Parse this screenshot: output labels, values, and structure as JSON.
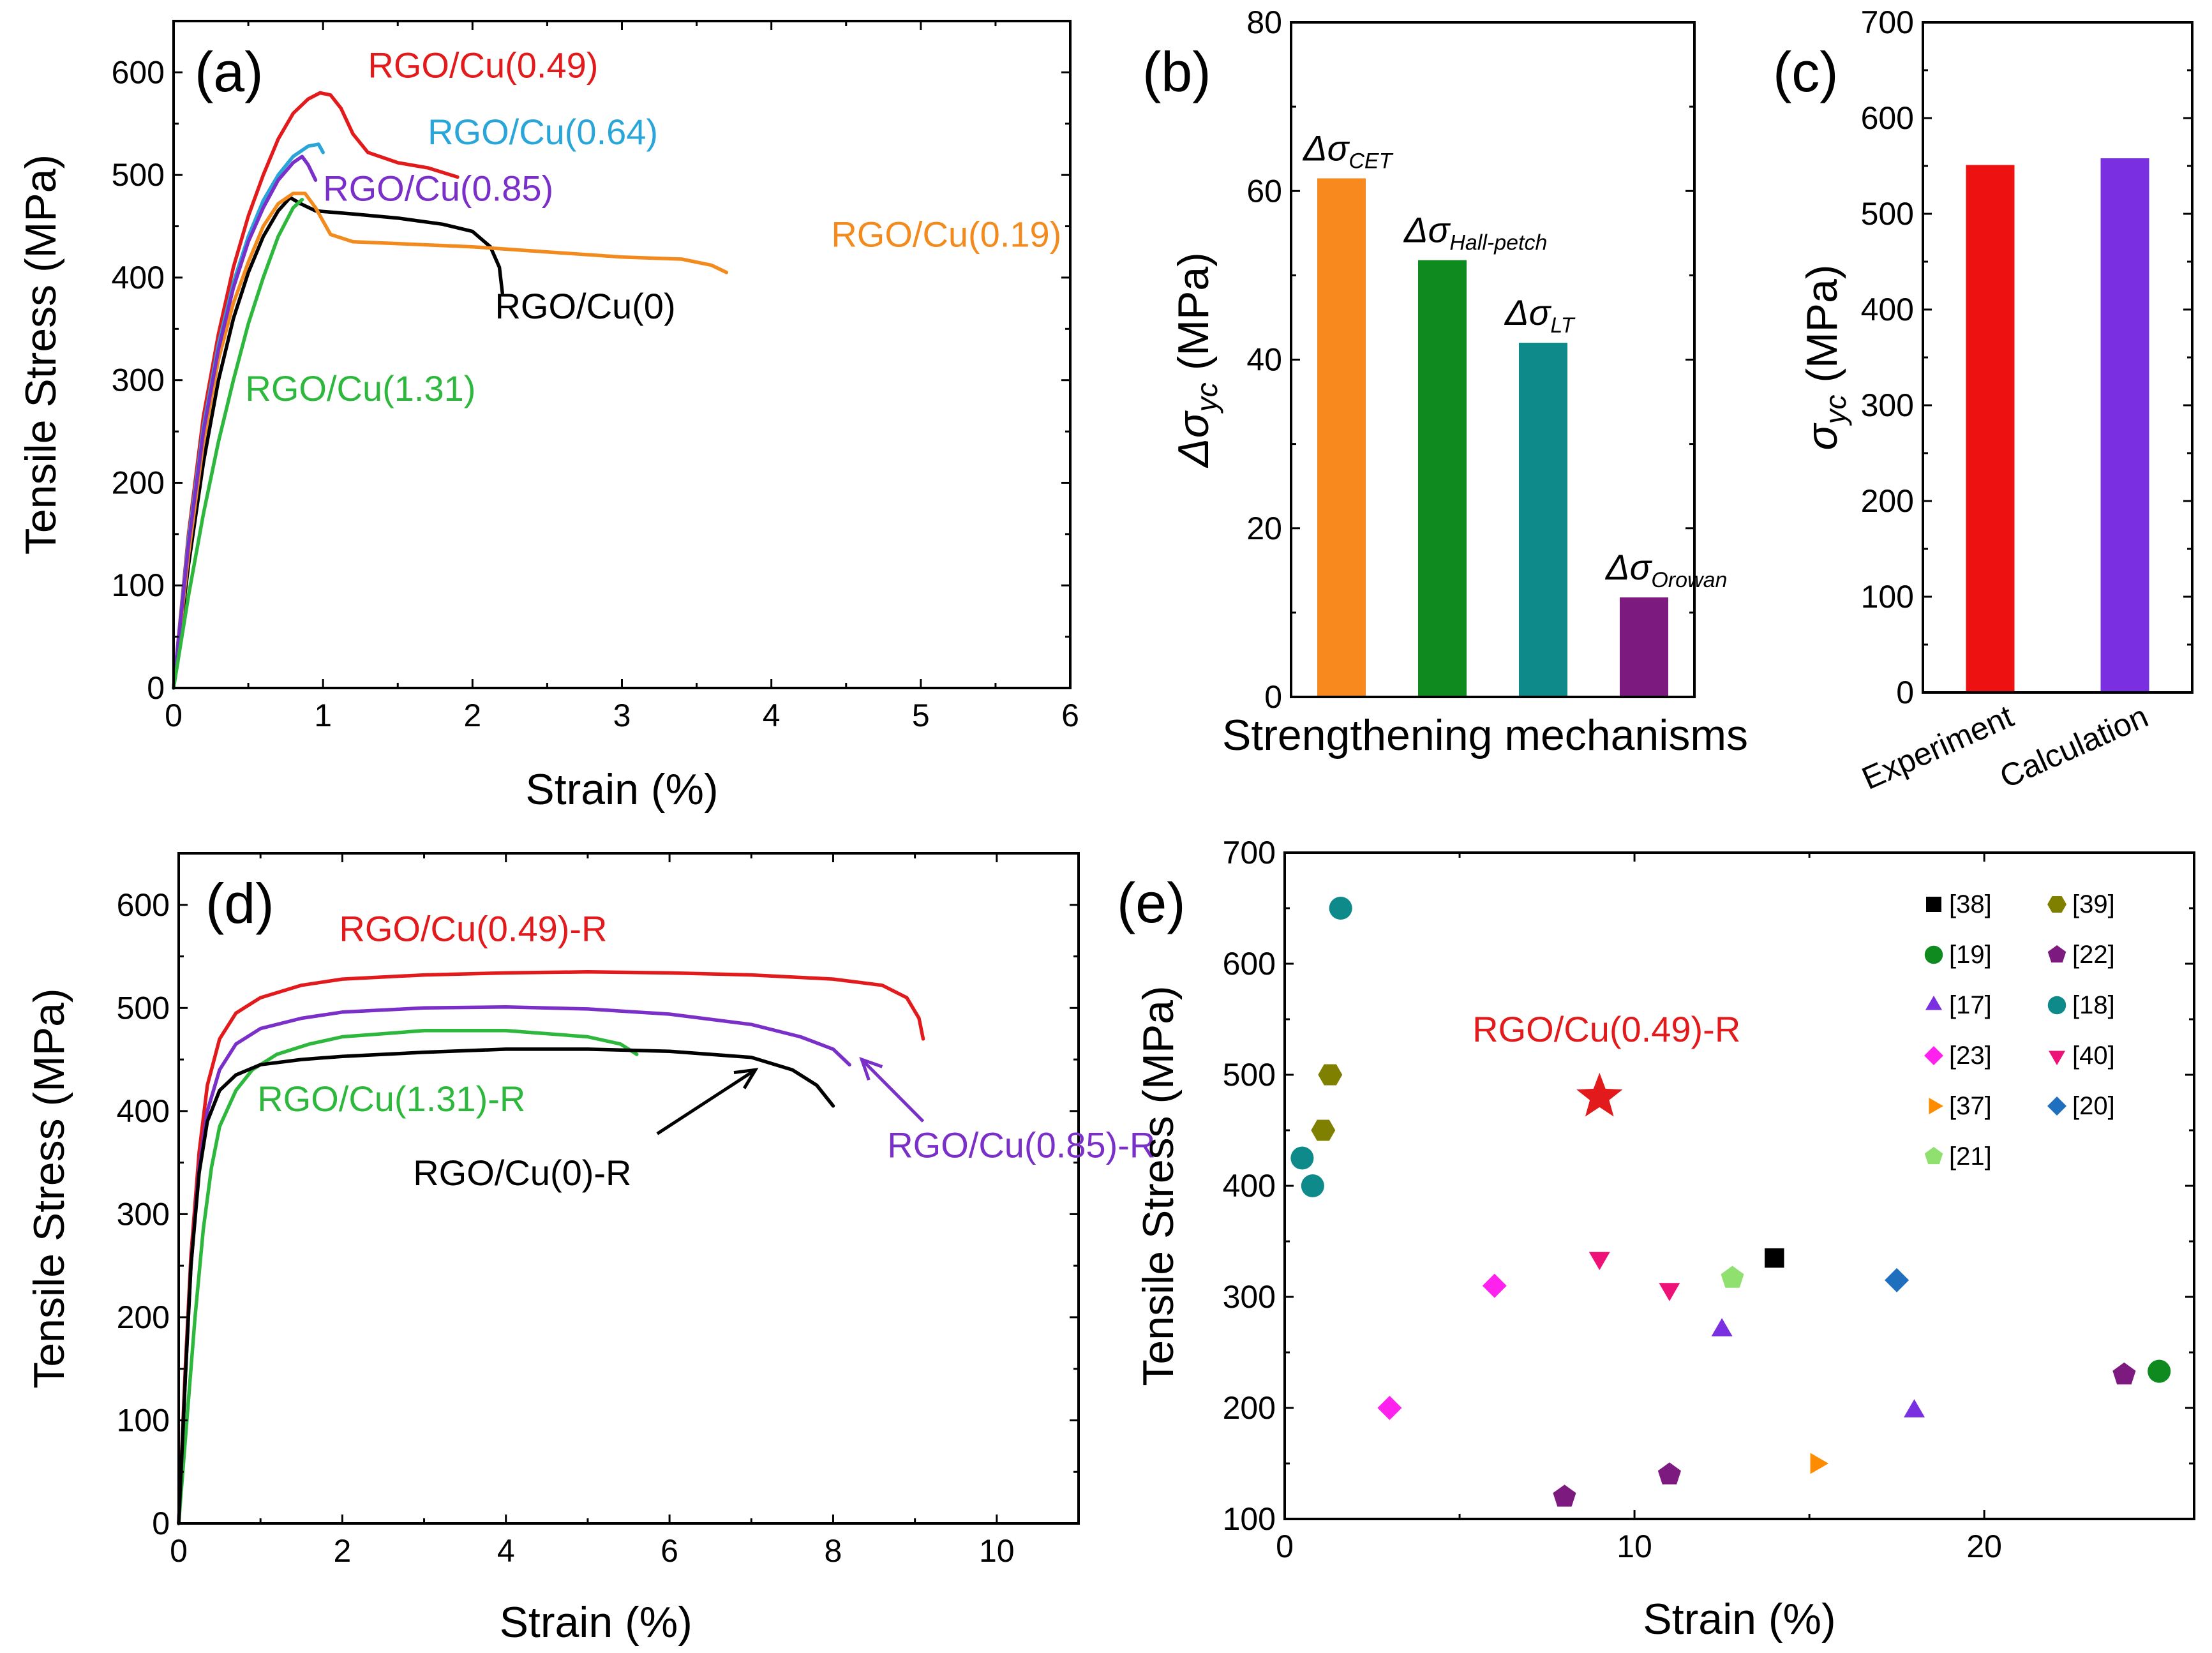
{
  "chart_data": [
    {
      "id": "a",
      "panel_label": "(a)",
      "type": "line",
      "xlabel": "Strain (%)",
      "ylabel": "Tensile Stress (MPa)",
      "xlim": [
        0,
        6
      ],
      "ylim": [
        0,
        650
      ],
      "xticks": [
        0,
        1,
        2,
        3,
        4,
        5,
        6
      ],
      "yticks": [
        0,
        100,
        200,
        300,
        400,
        500,
        600
      ],
      "series": [
        {
          "name": "RGO/Cu(0)",
          "color": "#000000",
          "label": "RGO/Cu(0)",
          "label_x": 2.15,
          "label_y": 360,
          "points": [
            [
              0,
              0
            ],
            [
              0.1,
              120
            ],
            [
              0.2,
              220
            ],
            [
              0.3,
              300
            ],
            [
              0.4,
              360
            ],
            [
              0.5,
              405
            ],
            [
              0.6,
              440
            ],
            [
              0.7,
              465
            ],
            [
              0.78,
              478
            ],
            [
              0.85,
              472
            ],
            [
              0.95,
              465
            ],
            [
              1.2,
              462
            ],
            [
              1.5,
              458
            ],
            [
              1.8,
              452
            ],
            [
              2.0,
              445
            ],
            [
              2.12,
              430
            ],
            [
              2.18,
              410
            ],
            [
              2.2,
              385
            ]
          ]
        },
        {
          "name": "RGO/Cu(0.19)",
          "color": "#f28a1e",
          "label": "RGO/Cu(0.19)",
          "label_x": 4.4,
          "label_y": 430,
          "points": [
            [
              0,
              0
            ],
            [
              0.1,
              130
            ],
            [
              0.2,
              240
            ],
            [
              0.3,
              320
            ],
            [
              0.4,
              375
            ],
            [
              0.5,
              415
            ],
            [
              0.6,
              450
            ],
            [
              0.7,
              472
            ],
            [
              0.8,
              482
            ],
            [
              0.88,
              482
            ],
            [
              0.95,
              468
            ],
            [
              1.05,
              442
            ],
            [
              1.2,
              435
            ],
            [
              2,
              430
            ],
            [
              3,
              420
            ],
            [
              3.4,
              418
            ],
            [
              3.6,
              412
            ],
            [
              3.7,
              405
            ]
          ]
        },
        {
          "name": "RGO/Cu(0.49)",
          "color": "#e31a1c",
          "label": "RGO/Cu(0.49)",
          "label_x": 1.3,
          "label_y": 595,
          "points": [
            [
              0,
              0
            ],
            [
              0.1,
              150
            ],
            [
              0.2,
              265
            ],
            [
              0.3,
              345
            ],
            [
              0.4,
              410
            ],
            [
              0.5,
              460
            ],
            [
              0.6,
              500
            ],
            [
              0.7,
              535
            ],
            [
              0.8,
              560
            ],
            [
              0.9,
              574
            ],
            [
              0.98,
              580
            ],
            [
              1.05,
              578
            ],
            [
              1.12,
              565
            ],
            [
              1.2,
              540
            ],
            [
              1.3,
              522
            ],
            [
              1.5,
              512
            ],
            [
              1.7,
              507
            ],
            [
              1.9,
              498
            ]
          ]
        },
        {
          "name": "RGO/Cu(0.64)",
          "color": "#2aa5d8",
          "label": "RGO/Cu(0.64)",
          "label_x": 1.7,
          "label_y": 530,
          "points": [
            [
              0,
              0
            ],
            [
              0.1,
              145
            ],
            [
              0.2,
              255
            ],
            [
              0.3,
              335
            ],
            [
              0.4,
              395
            ],
            [
              0.5,
              440
            ],
            [
              0.6,
              475
            ],
            [
              0.7,
              500
            ],
            [
              0.8,
              518
            ],
            [
              0.9,
              528
            ],
            [
              0.97,
              530
            ],
            [
              1.0,
              522
            ]
          ]
        },
        {
          "name": "RGO/Cu(0.85)",
          "color": "#7b2fc9",
          "label": "RGO/Cu(0.85)",
          "label_x": 1.0,
          "label_y": 475,
          "points": [
            [
              0,
              0
            ],
            [
              0.1,
              140
            ],
            [
              0.2,
              250
            ],
            [
              0.3,
              330
            ],
            [
              0.4,
              390
            ],
            [
              0.5,
              435
            ],
            [
              0.6,
              468
            ],
            [
              0.7,
              495
            ],
            [
              0.8,
              512
            ],
            [
              0.86,
              518
            ],
            [
              0.9,
              510
            ],
            [
              0.95,
              495
            ]
          ]
        },
        {
          "name": "RGO/Cu(1.31)",
          "color": "#2db83d",
          "label": "RGO/Cu(1.31)",
          "label_x": 0.48,
          "label_y": 280,
          "points": [
            [
              0,
              0
            ],
            [
              0.1,
              90
            ],
            [
              0.2,
              170
            ],
            [
              0.3,
              240
            ],
            [
              0.4,
              300
            ],
            [
              0.5,
              355
            ],
            [
              0.6,
              400
            ],
            [
              0.7,
              440
            ],
            [
              0.8,
              468
            ],
            [
              0.86,
              476
            ]
          ]
        }
      ]
    },
    {
      "id": "b",
      "panel_label": "(b)",
      "type": "bar",
      "xlabel": "Strengthening mechanisms",
      "ylabel_main": "Δσ",
      "ylabel_sub": "yc",
      "ylabel_unit": " (MPa)",
      "ylim": [
        0,
        80
      ],
      "yticks": [
        0,
        20,
        40,
        60,
        80
      ],
      "bars": [
        {
          "main": "Δσ",
          "sub": "CET",
          "value": 61.5,
          "color": "#f7891f"
        },
        {
          "main": "Δσ",
          "sub": "Hall-petch",
          "value": 51.8,
          "color": "#0e8a1f"
        },
        {
          "main": "Δσ",
          "sub": "LT",
          "value": 42,
          "color": "#0f8a8a"
        },
        {
          "main": "Δσ",
          "sub": "Orowan",
          "value": 11.8,
          "color": "#7d1a7f"
        }
      ]
    },
    {
      "id": "c",
      "panel_label": "(c)",
      "type": "bar",
      "ylabel_main": "σ",
      "ylabel_sub": "yc",
      "ylabel_unit": " (MPa)",
      "ylim": [
        0,
        700
      ],
      "yticks": [
        0,
        100,
        200,
        300,
        400,
        500,
        600,
        700
      ],
      "categories": [
        "Experiment",
        "Calculation"
      ],
      "values": [
        551,
        558
      ],
      "colors": [
        "#ee1111",
        "#7a2fe0"
      ]
    },
    {
      "id": "d",
      "panel_label": "(d)",
      "type": "line",
      "xlabel": "Strain (%)",
      "ylabel": "Tensile Stress (MPa)",
      "xlim": [
        0,
        11
      ],
      "ylim": [
        0,
        650
      ],
      "xticks": [
        0,
        2,
        4,
        6,
        8,
        10
      ],
      "yticks": [
        0,
        100,
        200,
        300,
        400,
        500,
        600
      ],
      "series": [
        {
          "name": "RGO/Cu(0.49)-R",
          "color": "#e31a1c",
          "points": [
            [
              0,
              0
            ],
            [
              0.08,
              150
            ],
            [
              0.15,
              260
            ],
            [
              0.25,
              360
            ],
            [
              0.35,
              425
            ],
            [
              0.5,
              470
            ],
            [
              0.7,
              495
            ],
            [
              1,
              510
            ],
            [
              1.5,
              522
            ],
            [
              2,
              528
            ],
            [
              3,
              532
            ],
            [
              4,
              534
            ],
            [
              5,
              535
            ],
            [
              6,
              534
            ],
            [
              7,
              532
            ],
            [
              8,
              528
            ],
            [
              8.6,
              522
            ],
            [
              8.9,
              510
            ],
            [
              9.05,
              490
            ],
            [
              9.1,
              470
            ]
          ]
        },
        {
          "name": "RGO/Cu(0.85)-R",
          "color": "#7b2fc9",
          "points": [
            [
              0,
              0
            ],
            [
              0.08,
              140
            ],
            [
              0.15,
              250
            ],
            [
              0.25,
              345
            ],
            [
              0.35,
              400
            ],
            [
              0.5,
              440
            ],
            [
              0.7,
              465
            ],
            [
              1,
              480
            ],
            [
              1.5,
              490
            ],
            [
              2,
              496
            ],
            [
              3,
              500
            ],
            [
              4,
              501
            ],
            [
              5,
              499
            ],
            [
              6,
              494
            ],
            [
              7,
              484
            ],
            [
              7.6,
              472
            ],
            [
              8,
              460
            ],
            [
              8.2,
              445
            ]
          ]
        },
        {
          "name": "RGO/Cu(1.31)-R",
          "color": "#2db83d",
          "points": [
            [
              0,
              0
            ],
            [
              0.1,
              100
            ],
            [
              0.2,
              200
            ],
            [
              0.3,
              285
            ],
            [
              0.4,
              345
            ],
            [
              0.5,
              385
            ],
            [
              0.7,
              420
            ],
            [
              0.9,
              440
            ],
            [
              1.2,
              455
            ],
            [
              1.6,
              465
            ],
            [
              2,
              472
            ],
            [
              3,
              478
            ],
            [
              4,
              478
            ],
            [
              5,
              472
            ],
            [
              5.4,
              465
            ],
            [
              5.6,
              455
            ]
          ]
        },
        {
          "name": "RGO/Cu(0)-R",
          "color": "#000000",
          "points": [
            [
              0,
              0
            ],
            [
              0.08,
              140
            ],
            [
              0.15,
              250
            ],
            [
              0.25,
              340
            ],
            [
              0.35,
              390
            ],
            [
              0.5,
              420
            ],
            [
              0.7,
              435
            ],
            [
              1,
              445
            ],
            [
              1.5,
              450
            ],
            [
              2,
              453
            ],
            [
              3,
              457
            ],
            [
              4,
              460
            ],
            [
              5,
              460
            ],
            [
              6,
              458
            ],
            [
              7,
              452
            ],
            [
              7.5,
              440
            ],
            [
              7.8,
              425
            ],
            [
              8,
              405
            ]
          ]
        }
      ],
      "annotations": [
        {
          "text": "RGO/Cu(0.49)-R",
          "color": "#e31a1c",
          "x": 3.6,
          "y": 565
        },
        {
          "text": "RGO/Cu(1.31)-R",
          "color": "#2db83d",
          "x": 2.6,
          "y": 400
        },
        {
          "text": "RGO/Cu(0)-R",
          "color": "#000000",
          "x": 4.2,
          "y": 328
        },
        {
          "text": "RGO/Cu(0.85)-R",
          "color": "#7b2fc9",
          "x": 10.3,
          "y": 355
        }
      ],
      "arrows": [
        {
          "from": [
            5.85,
            378
          ],
          "to": [
            7.05,
            440
          ],
          "color": "#000000"
        },
        {
          "from": [
            9.1,
            390
          ],
          "to": [
            8.35,
            450
          ],
          "color": "#7b2fc9"
        }
      ]
    },
    {
      "id": "e",
      "panel_label": "(e)",
      "type": "scatter",
      "xlabel": "Strain (%)",
      "ylabel": "Tensile Stress (MPa)",
      "xlim": [
        0,
        26
      ],
      "ylim": [
        100,
        700
      ],
      "xticks": [
        0,
        10,
        20
      ],
      "yticks": [
        100,
        200,
        300,
        400,
        500,
        600,
        700
      ],
      "annotation": {
        "text": "RGO/Cu(0.49)-R",
        "color": "#e31a1c",
        "x": 9.2,
        "y": 530
      },
      "highlight": {
        "name": "RGO/Cu(0.49)-R",
        "x": 9,
        "y": 480,
        "color": "#e31a1c",
        "marker": "star"
      },
      "series": [
        {
          "name": "[38]",
          "color": "#000000",
          "marker": "square",
          "points": [
            [
              14,
              335
            ]
          ]
        },
        {
          "name": "[39]",
          "color": "#808000",
          "marker": "hexagon",
          "points": [
            [
              1.1,
              450
            ],
            [
              1.3,
              500
            ]
          ]
        },
        {
          "name": "[19]",
          "color": "#0e8a1f",
          "marker": "circle",
          "points": [
            [
              25,
              233
            ]
          ]
        },
        {
          "name": "[22]",
          "color": "#7d1a7f",
          "marker": "pentagon",
          "points": [
            [
              8,
              120
            ],
            [
              11,
              140
            ],
            [
              24,
              230
            ]
          ]
        },
        {
          "name": "[17]",
          "color": "#7a2fe0",
          "marker": "triangle-up",
          "points": [
            [
              12.5,
              270
            ],
            [
              18,
              197
            ]
          ]
        },
        {
          "name": "[18]",
          "color": "#0f8a8a",
          "marker": "circle",
          "points": [
            [
              0.5,
              425
            ],
            [
              0.8,
              400
            ],
            [
              1.6,
              650
            ]
          ]
        },
        {
          "name": "[23]",
          "color": "#ff22ee",
          "marker": "diamond",
          "points": [
            [
              3,
              200
            ],
            [
              6,
              310
            ]
          ]
        },
        {
          "name": "[40]",
          "color": "#ee1177",
          "marker": "triangle-down",
          "points": [
            [
              9,
              335
            ],
            [
              11,
              307
            ]
          ]
        },
        {
          "name": "[37]",
          "color": "#ff8c00",
          "marker": "triangle-right",
          "points": [
            [
              15.2,
              150
            ]
          ]
        },
        {
          "name": "[20]",
          "color": "#1f6fbf",
          "marker": "diamond",
          "points": [
            [
              17.5,
              315
            ]
          ]
        },
        {
          "name": "[21]",
          "color": "#90e070",
          "marker": "pentagon",
          "points": [
            [
              12.8,
              317
            ]
          ]
        }
      ]
    }
  ]
}
